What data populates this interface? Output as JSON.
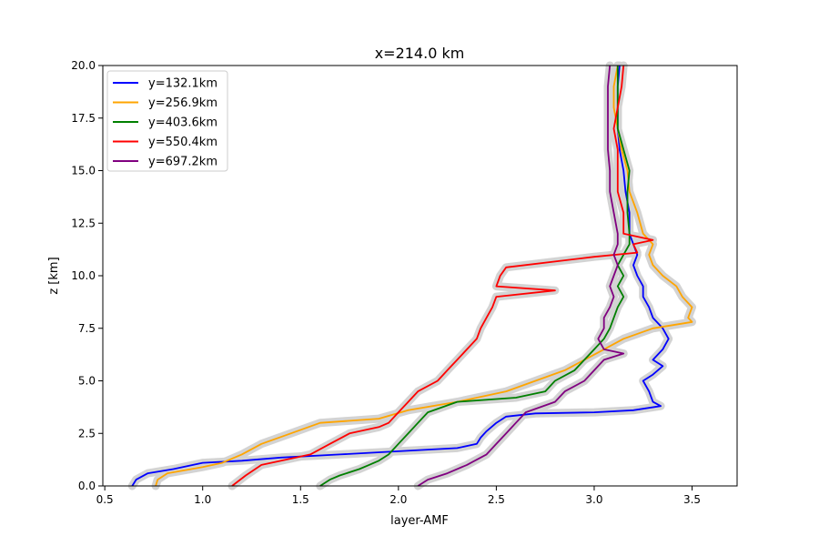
{
  "chart_data": {
    "type": "line",
    "title": "x=214.0 km",
    "xlabel": "layer-AMF",
    "ylabel": "z [km]",
    "xlim": [
      0.49,
      3.73
    ],
    "ylim": [
      0,
      20
    ],
    "xticks": [
      "0.5",
      "1.0",
      "1.5",
      "2.0",
      "2.5",
      "3.0",
      "3.5"
    ],
    "yticks": [
      "0.0",
      "2.5",
      "5.0",
      "7.5",
      "10.0",
      "12.5",
      "15.0",
      "17.5",
      "20.0"
    ],
    "grid": false,
    "legend_position": "top-left",
    "uncertainty_band_color": "#d3d3d3",
    "series": [
      {
        "name": "y=132.1km",
        "color": "#0000ff",
        "points": [
          [
            0.64,
            0
          ],
          [
            0.66,
            0.3
          ],
          [
            0.72,
            0.6
          ],
          [
            0.85,
            0.8
          ],
          [
            1.0,
            1.1
          ],
          [
            1.2,
            1.2
          ],
          [
            1.4,
            1.35
          ],
          [
            1.7,
            1.5
          ],
          [
            2.0,
            1.65
          ],
          [
            2.3,
            1.8
          ],
          [
            2.4,
            2.0
          ],
          [
            2.42,
            2.3
          ],
          [
            2.45,
            2.6
          ],
          [
            2.5,
            3.0
          ],
          [
            2.55,
            3.3
          ],
          [
            2.7,
            3.45
          ],
          [
            3.0,
            3.5
          ],
          [
            3.2,
            3.6
          ],
          [
            3.34,
            3.8
          ],
          [
            3.3,
            4.0
          ],
          [
            3.28,
            4.5
          ],
          [
            3.25,
            5.0
          ],
          [
            3.3,
            5.3
          ],
          [
            3.35,
            5.7
          ],
          [
            3.3,
            6.0
          ],
          [
            3.35,
            6.5
          ],
          [
            3.38,
            7.0
          ],
          [
            3.35,
            7.5
          ],
          [
            3.3,
            8.0
          ],
          [
            3.28,
            8.5
          ],
          [
            3.25,
            9.0
          ],
          [
            3.25,
            9.5
          ],
          [
            3.22,
            10.0
          ],
          [
            3.2,
            10.5
          ],
          [
            3.22,
            11.0
          ],
          [
            3.2,
            11.5
          ],
          [
            3.18,
            12.0
          ],
          [
            3.18,
            13.0
          ],
          [
            3.16,
            14.0
          ],
          [
            3.15,
            15.0
          ],
          [
            3.13,
            16.0
          ],
          [
            3.12,
            17.0
          ],
          [
            3.12,
            18.0
          ],
          [
            3.12,
            19.0
          ],
          [
            3.13,
            20.0
          ]
        ]
      },
      {
        "name": "y=256.9km",
        "color": "#ffa500",
        "points": [
          [
            0.76,
            0
          ],
          [
            0.77,
            0.3
          ],
          [
            0.82,
            0.6
          ],
          [
            1.0,
            0.9
          ],
          [
            1.1,
            1.1
          ],
          [
            1.2,
            1.5
          ],
          [
            1.3,
            2.0
          ],
          [
            1.45,
            2.5
          ],
          [
            1.6,
            3.0
          ],
          [
            1.9,
            3.2
          ],
          [
            2.05,
            3.6
          ],
          [
            2.3,
            4.0
          ],
          [
            2.55,
            4.5
          ],
          [
            2.7,
            5.0
          ],
          [
            2.85,
            5.5
          ],
          [
            2.95,
            6.0
          ],
          [
            3.05,
            6.5
          ],
          [
            3.15,
            7.0
          ],
          [
            3.3,
            7.5
          ],
          [
            3.5,
            7.8
          ],
          [
            3.48,
            8.0
          ],
          [
            3.5,
            8.5
          ],
          [
            3.45,
            9.0
          ],
          [
            3.42,
            9.5
          ],
          [
            3.35,
            10.0
          ],
          [
            3.3,
            10.5
          ],
          [
            3.28,
            11.0
          ],
          [
            3.3,
            11.5
          ],
          [
            3.25,
            12.0
          ],
          [
            3.22,
            13.0
          ],
          [
            3.18,
            14.0
          ],
          [
            3.17,
            15.0
          ],
          [
            3.14,
            16.0
          ],
          [
            3.12,
            17.0
          ],
          [
            3.1,
            18.0
          ],
          [
            3.1,
            19.0
          ],
          [
            3.12,
            20.0
          ]
        ]
      },
      {
        "name": "y=403.6km",
        "color": "#008000",
        "points": [
          [
            1.6,
            0
          ],
          [
            1.65,
            0.3
          ],
          [
            1.7,
            0.5
          ],
          [
            1.8,
            0.8
          ],
          [
            1.85,
            1.0
          ],
          [
            1.9,
            1.2
          ],
          [
            1.95,
            1.5
          ],
          [
            2.0,
            2.0
          ],
          [
            2.05,
            2.5
          ],
          [
            2.1,
            3.0
          ],
          [
            2.15,
            3.5
          ],
          [
            2.3,
            4.0
          ],
          [
            2.6,
            4.2
          ],
          [
            2.75,
            4.5
          ],
          [
            2.8,
            5.0
          ],
          [
            2.9,
            5.5
          ],
          [
            2.95,
            6.0
          ],
          [
            3.0,
            6.5
          ],
          [
            3.05,
            7.0
          ],
          [
            3.08,
            7.5
          ],
          [
            3.1,
            8.0
          ],
          [
            3.12,
            8.5
          ],
          [
            3.15,
            9.0
          ],
          [
            3.12,
            9.5
          ],
          [
            3.15,
            10.0
          ],
          [
            3.12,
            10.5
          ],
          [
            3.15,
            11.0
          ],
          [
            3.18,
            11.5
          ],
          [
            3.18,
            12.0
          ],
          [
            3.17,
            13.0
          ],
          [
            3.17,
            14.0
          ],
          [
            3.18,
            15.0
          ],
          [
            3.15,
            16.0
          ],
          [
            3.12,
            17.0
          ],
          [
            3.12,
            18.0
          ],
          [
            3.12,
            19.0
          ],
          [
            3.12,
            20.0
          ]
        ]
      },
      {
        "name": "y=550.4km",
        "color": "#ff0000",
        "points": [
          [
            1.15,
            0
          ],
          [
            1.22,
            0.5
          ],
          [
            1.3,
            1.0
          ],
          [
            1.45,
            1.3
          ],
          [
            1.55,
            1.5
          ],
          [
            1.65,
            2.0
          ],
          [
            1.75,
            2.5
          ],
          [
            1.9,
            2.8
          ],
          [
            1.95,
            3.0
          ],
          [
            2.0,
            3.5
          ],
          [
            2.05,
            4.0
          ],
          [
            2.1,
            4.5
          ],
          [
            2.2,
            5.0
          ],
          [
            2.25,
            5.5
          ],
          [
            2.3,
            6.0
          ],
          [
            2.35,
            6.5
          ],
          [
            2.4,
            7.0
          ],
          [
            2.42,
            7.5
          ],
          [
            2.45,
            8.0
          ],
          [
            2.48,
            8.5
          ],
          [
            2.5,
            9.0
          ],
          [
            2.8,
            9.3
          ],
          [
            2.5,
            9.5
          ],
          [
            2.52,
            10.0
          ],
          [
            2.55,
            10.4
          ],
          [
            3.0,
            10.9
          ],
          [
            3.22,
            11.1
          ],
          [
            3.2,
            11.5
          ],
          [
            3.3,
            11.7
          ],
          [
            3.15,
            12.0
          ],
          [
            3.15,
            13.0
          ],
          [
            3.12,
            14.0
          ],
          [
            3.12,
            15.0
          ],
          [
            3.12,
            16.0
          ],
          [
            3.1,
            17.0
          ],
          [
            3.12,
            18.0
          ],
          [
            3.14,
            19.0
          ],
          [
            3.15,
            20.0
          ]
        ]
      },
      {
        "name": "y=697.2km",
        "color": "#800080",
        "points": [
          [
            2.1,
            0
          ],
          [
            2.15,
            0.3
          ],
          [
            2.25,
            0.6
          ],
          [
            2.35,
            1.0
          ],
          [
            2.45,
            1.5
          ],
          [
            2.5,
            2.0
          ],
          [
            2.55,
            2.5
          ],
          [
            2.6,
            3.0
          ],
          [
            2.65,
            3.5
          ],
          [
            2.8,
            4.0
          ],
          [
            2.85,
            4.5
          ],
          [
            2.95,
            5.0
          ],
          [
            3.0,
            5.5
          ],
          [
            3.05,
            6.0
          ],
          [
            3.15,
            6.3
          ],
          [
            3.05,
            6.5
          ],
          [
            3.02,
            7.0
          ],
          [
            3.05,
            7.5
          ],
          [
            3.05,
            8.0
          ],
          [
            3.08,
            8.5
          ],
          [
            3.1,
            9.0
          ],
          [
            3.08,
            9.5
          ],
          [
            3.1,
            10.0
          ],
          [
            3.12,
            10.5
          ],
          [
            3.1,
            11.0
          ],
          [
            3.12,
            11.5
          ],
          [
            3.12,
            12.0
          ],
          [
            3.1,
            13.0
          ],
          [
            3.08,
            14.0
          ],
          [
            3.08,
            15.0
          ],
          [
            3.07,
            16.0
          ],
          [
            3.07,
            17.0
          ],
          [
            3.07,
            18.0
          ],
          [
            3.07,
            19.0
          ],
          [
            3.08,
            20.0
          ]
        ]
      }
    ]
  }
}
